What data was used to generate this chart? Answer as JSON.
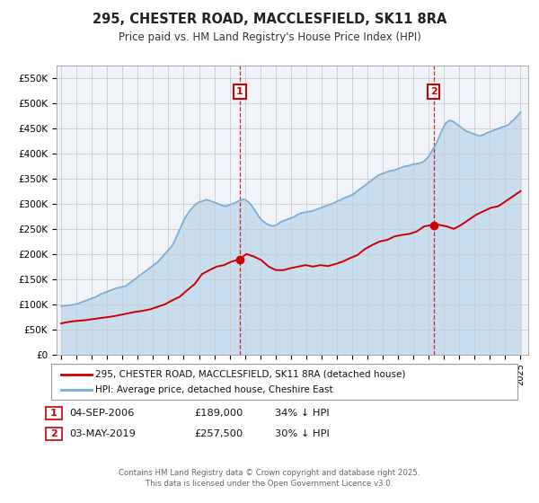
{
  "title": "295, CHESTER ROAD, MACCLESFIELD, SK11 8RA",
  "subtitle": "Price paid vs. HM Land Registry's House Price Index (HPI)",
  "background_color": "#ffffff",
  "plot_bg_color": "#f0f4fa",
  "grid_color": "#cccccc",
  "red_line_color": "#cc0000",
  "blue_line_color": "#7aadd4",
  "blue_fill_color": "#b8d4ea",
  "ylim": [
    0,
    575000
  ],
  "yticks": [
    0,
    50000,
    100000,
    150000,
    200000,
    250000,
    300000,
    350000,
    400000,
    450000,
    500000,
    550000
  ],
  "ytick_labels": [
    "£0",
    "£50K",
    "£100K",
    "£150K",
    "£200K",
    "£250K",
    "£300K",
    "£350K",
    "£400K",
    "£450K",
    "£500K",
    "£550K"
  ],
  "xlim_start": 1994.7,
  "xlim_end": 2025.5,
  "xticks": [
    1995,
    1996,
    1997,
    1998,
    1999,
    2000,
    2001,
    2002,
    2003,
    2004,
    2005,
    2006,
    2007,
    2008,
    2009,
    2010,
    2011,
    2012,
    2013,
    2014,
    2015,
    2016,
    2017,
    2018,
    2019,
    2020,
    2021,
    2022,
    2023,
    2024,
    2025
  ],
  "sale1_x": 2006.67,
  "sale1_y": 189000,
  "sale1_label": "1",
  "sale1_date": "04-SEP-2006",
  "sale1_price": "£189,000",
  "sale1_hpi": "34% ↓ HPI",
  "sale2_x": 2019.33,
  "sale2_y": 257500,
  "sale2_label": "2",
  "sale2_date": "03-MAY-2019",
  "sale2_price": "£257,500",
  "sale2_hpi": "30% ↓ HPI",
  "legend_label_red": "295, CHESTER ROAD, MACCLESFIELD, SK11 8RA (detached house)",
  "legend_label_blue": "HPI: Average price, detached house, Cheshire East",
  "footer": "Contains HM Land Registry data © Crown copyright and database right 2025.\nThis data is licensed under the Open Government Licence v3.0.",
  "hpi_y": [
    96000,
    96500,
    97000,
    97200,
    97500,
    97800,
    98000,
    98500,
    99000,
    99500,
    100000,
    100500,
    101000,
    102000,
    103000,
    104000,
    105000,
    106000,
    107000,
    108000,
    109000,
    110000,
    111000,
    112000,
    113000,
    114000,
    115000,
    116500,
    118000,
    119500,
    121000,
    122000,
    123000,
    124000,
    125000,
    126000,
    127000,
    128000,
    129000,
    130000,
    131000,
    132000,
    133000,
    133500,
    134000,
    134500,
    135000,
    135500,
    136000,
    138000,
    140000,
    142000,
    144000,
    146000,
    148000,
    150000,
    152000,
    154000,
    156000,
    158000,
    160000,
    162000,
    164000,
    166000,
    168000,
    170000,
    172000,
    174000,
    176000,
    178000,
    180000,
    182000,
    184000,
    187000,
    190000,
    193000,
    196000,
    199000,
    202000,
    205000,
    208000,
    211000,
    214000,
    218000,
    222000,
    228000,
    234000,
    240000,
    246000,
    252000,
    258000,
    264000,
    270000,
    274000,
    278000,
    282000,
    286000,
    289000,
    292000,
    295000,
    298000,
    300000,
    302000,
    303000,
    304000,
    305000,
    306000,
    307000,
    308000,
    307500,
    307000,
    306000,
    305000,
    304000,
    303000,
    302000,
    301000,
    300000,
    299000,
    298000,
    297000,
    296000,
    295000,
    295500,
    296000,
    297000,
    298000,
    299000,
    300000,
    301000,
    302000,
    303500,
    305000,
    306000,
    307000,
    308000,
    309000,
    308000,
    307000,
    305000,
    303000,
    300000,
    297000,
    293000,
    289000,
    285000,
    281000,
    277000,
    273000,
    270000,
    267000,
    265000,
    263000,
    261000,
    259000,
    258000,
    257000,
    256500,
    256000,
    256500,
    257000,
    258000,
    260000,
    262000,
    264000,
    265000,
    266000,
    267000,
    268000,
    269000,
    270000,
    271000,
    272000,
    273000,
    274000,
    276000,
    278000,
    279000,
    280000,
    281000,
    282000,
    282500,
    283000,
    283500,
    284000,
    284500,
    285000,
    285500,
    286000,
    287000,
    288000,
    289000,
    290000,
    291000,
    292000,
    293000,
    294000,
    295000,
    296000,
    297000,
    298000,
    299000,
    300000,
    301000,
    302000,
    303500,
    305000,
    306000,
    307000,
    308500,
    310000,
    311000,
    312000,
    313000,
    314000,
    315000,
    316000,
    317500,
    319000,
    321000,
    323000,
    325000,
    327000,
    329000,
    331000,
    333000,
    335000,
    337000,
    339000,
    341000,
    343000,
    345000,
    347000,
    349000,
    351000,
    353000,
    355000,
    357000,
    358000,
    359000,
    360000,
    361000,
    362000,
    363000,
    364000,
    365000,
    365500,
    366000,
    366500,
    367000,
    368000,
    369000,
    370000,
    371000,
    372000,
    373000,
    374000,
    375000,
    375000,
    375000,
    376000,
    377000,
    378000,
    378500,
    379000,
    379500,
    380000,
    380500,
    381000,
    382000,
    383000,
    385000,
    387000,
    390000,
    393000,
    397000,
    401000,
    406000,
    410000,
    415000,
    420000,
    426000,
    432000,
    438000,
    444000,
    450000,
    455000,
    460000,
    462000,
    464000,
    466000,
    465000,
    464000,
    463000,
    461000,
    459000,
    457000,
    455000,
    453000,
    451000,
    449000,
    447000,
    445000,
    444000,
    443000,
    442000,
    441000,
    440000,
    439000,
    438000,
    437000,
    436000,
    435000,
    435000,
    436000,
    437000,
    438000,
    440000,
    441000,
    442000,
    443000,
    444000,
    445000,
    446000,
    447000,
    448000,
    449000,
    450000,
    451000,
    452000,
    453000,
    454000,
    455000,
    456000,
    457000,
    460000,
    463000,
    465000,
    467000,
    470000,
    473000,
    476000,
    479000,
    482000
  ],
  "red_y": [
    62000,
    65000,
    67000,
    68000,
    70000,
    72000,
    74000,
    76000,
    79000,
    82000,
    85000,
    87000,
    90000,
    95000,
    100000,
    108000,
    115000,
    128000,
    140000,
    160000,
    168000,
    175000,
    178000,
    185000,
    189000,
    200000,
    195000,
    188000,
    175000,
    168000,
    168000,
    172000,
    175000,
    178000,
    175000,
    178000,
    176000,
    180000,
    185000,
    192000,
    198000,
    210000,
    218000,
    225000,
    228000,
    235000,
    238000,
    240000,
    245000,
    255000,
    257500,
    258000,
    255000,
    250000,
    258000,
    268000,
    278000,
    285000,
    292000,
    295000,
    305000,
    315000,
    325000
  ]
}
